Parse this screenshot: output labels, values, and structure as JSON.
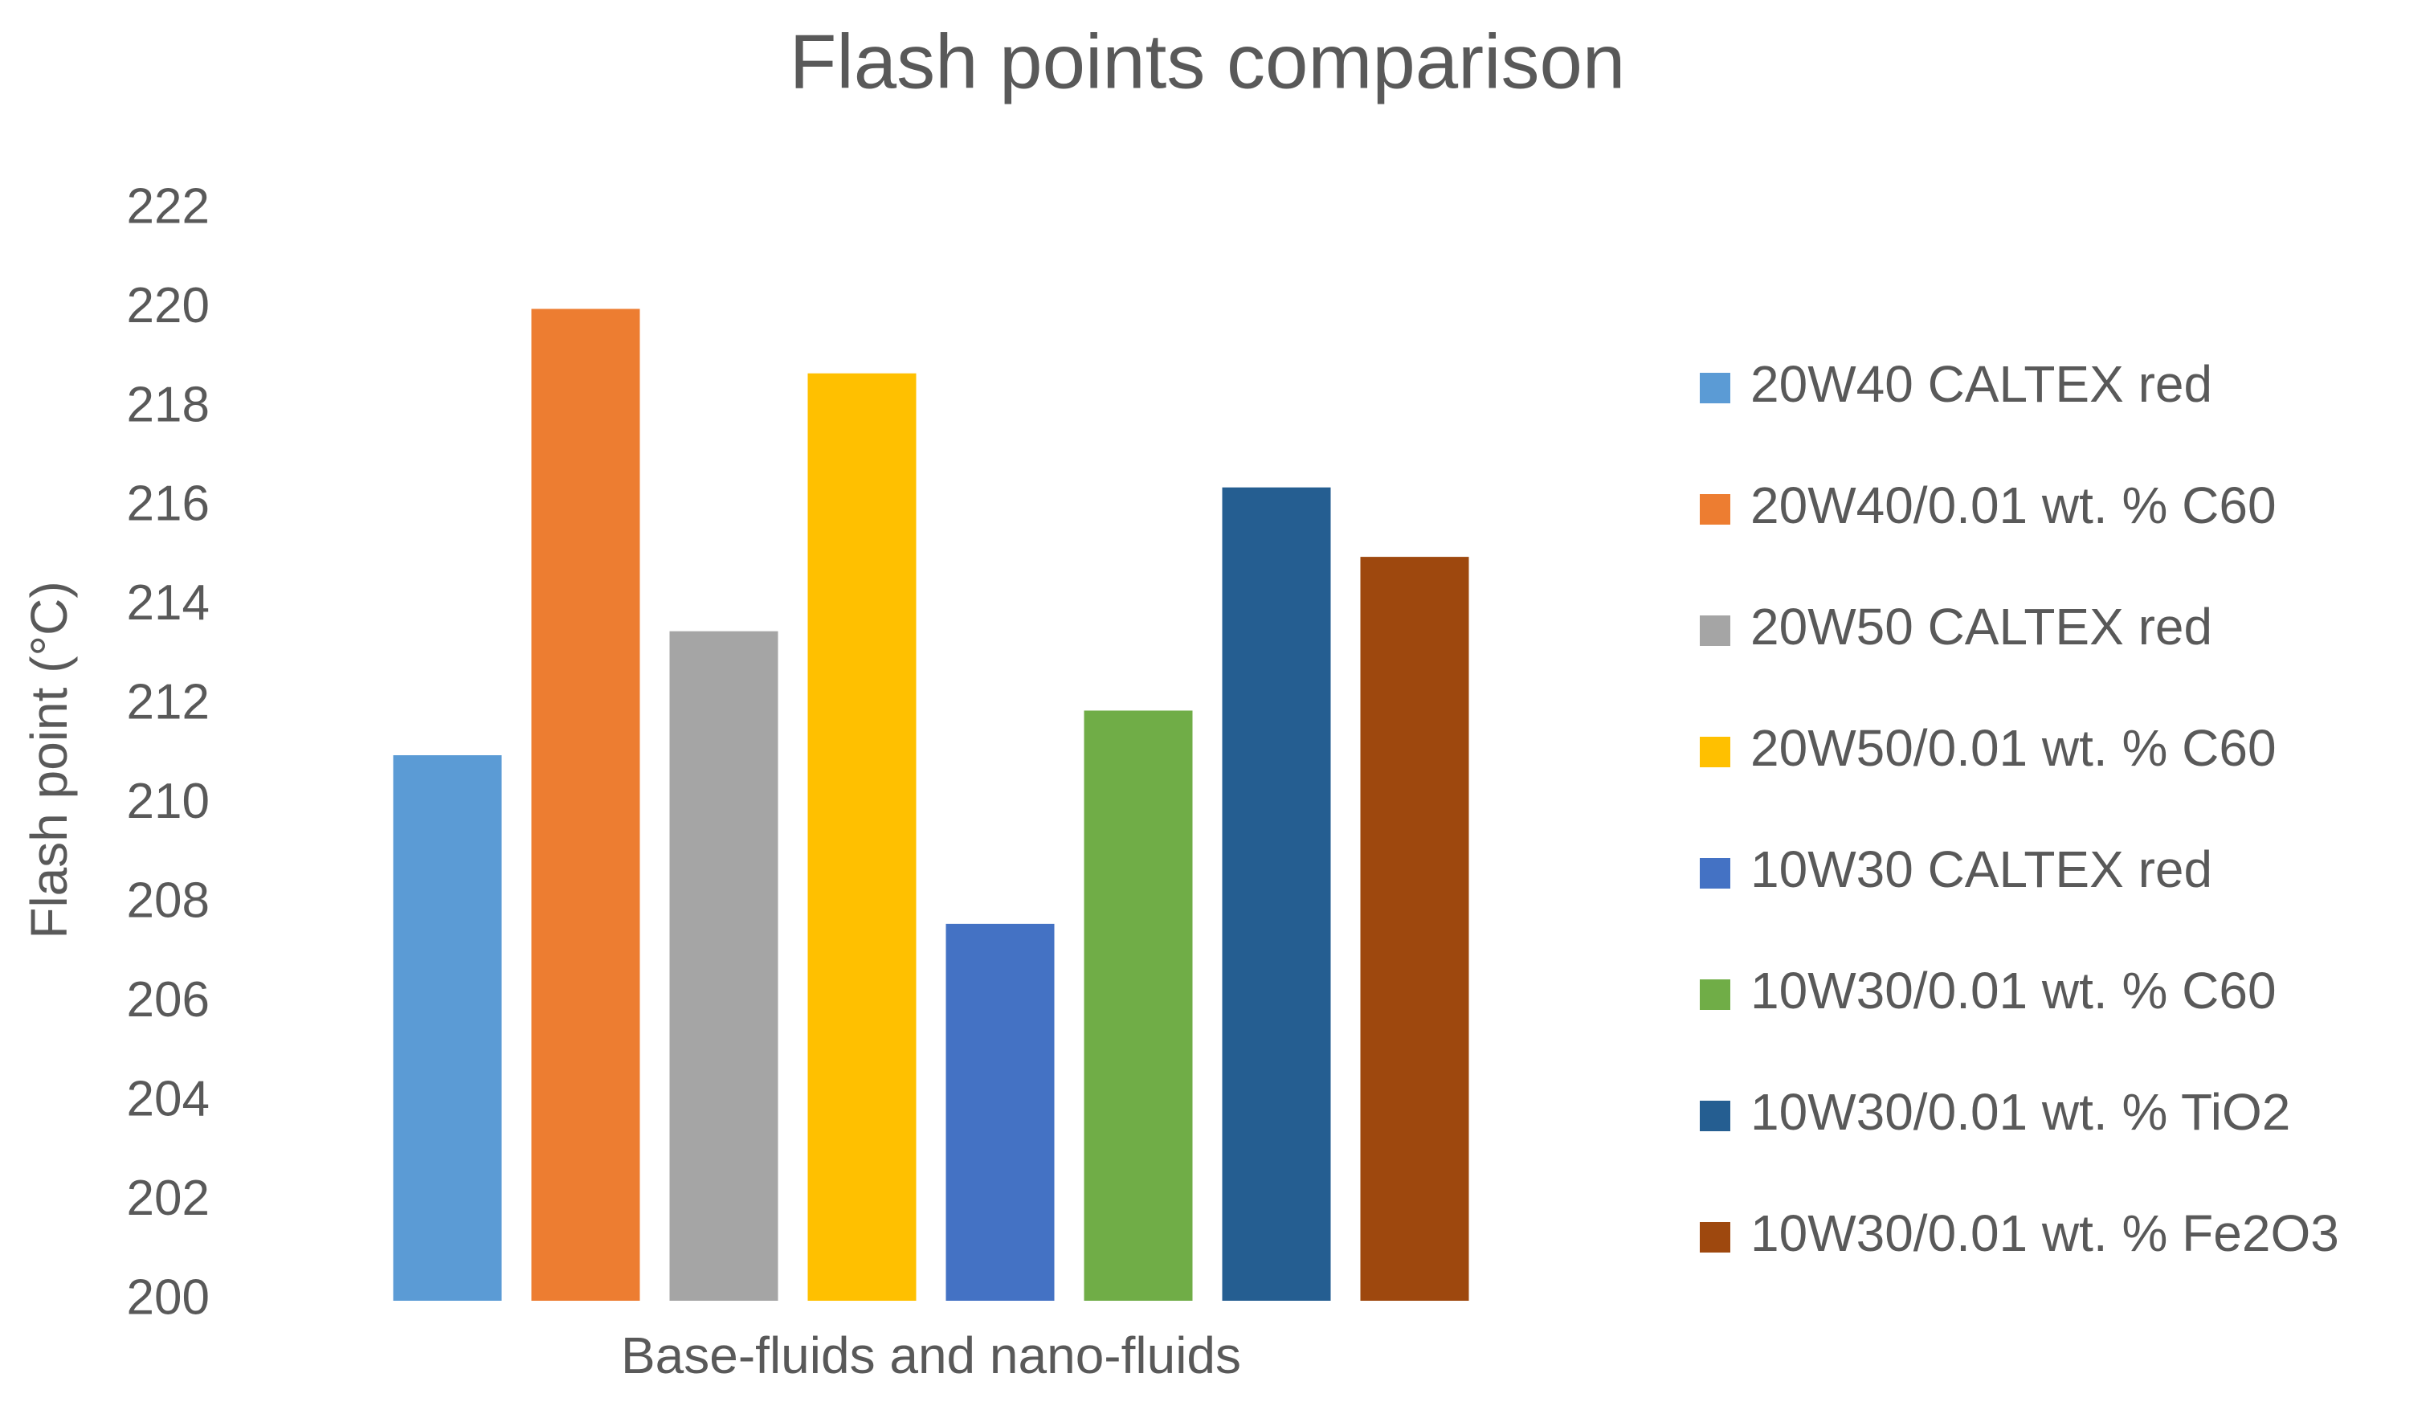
{
  "chart_data": {
    "type": "bar",
    "title": "Flash points comparison",
    "y_label": "Flash point (°C)",
    "categories": [
      "Base-fluids and nano-fluids"
    ],
    "series": [
      {
        "name": "20W40 CALTEX red",
        "color": "#5b9bd5",
        "values": [
          211
        ]
      },
      {
        "name": "20W40/0.01 wt. % C60",
        "color": "#ed7d31",
        "values": [
          220
        ]
      },
      {
        "name": "20W50 CALTEX red",
        "color": "#a5a5a5",
        "values": [
          213.5
        ]
      },
      {
        "name": "20W50/0.01 wt. % C60",
        "color": "#ffc000",
        "values": [
          218.7
        ]
      },
      {
        "name": "10W30 CALTEX red",
        "color": "#4472c4",
        "values": [
          207.6
        ]
      },
      {
        "name": "10W30/0.01 wt. % C60",
        "color": "#70ad47",
        "values": [
          211.9
        ]
      },
      {
        "name": "10W30/0.01 wt. % TiO2",
        "color": "#255e91",
        "values": [
          216.4
        ]
      },
      {
        "name": "10W30/0.01 wt. % Fe2O3",
        "color": "#9e480e",
        "values": [
          215
        ]
      }
    ],
    "ylim": [
      200,
      222
    ],
    "yticks": [
      200,
      202,
      204,
      206,
      208,
      210,
      212,
      214,
      216,
      218,
      220,
      222
    ],
    "grid": false,
    "legend": "right"
  }
}
